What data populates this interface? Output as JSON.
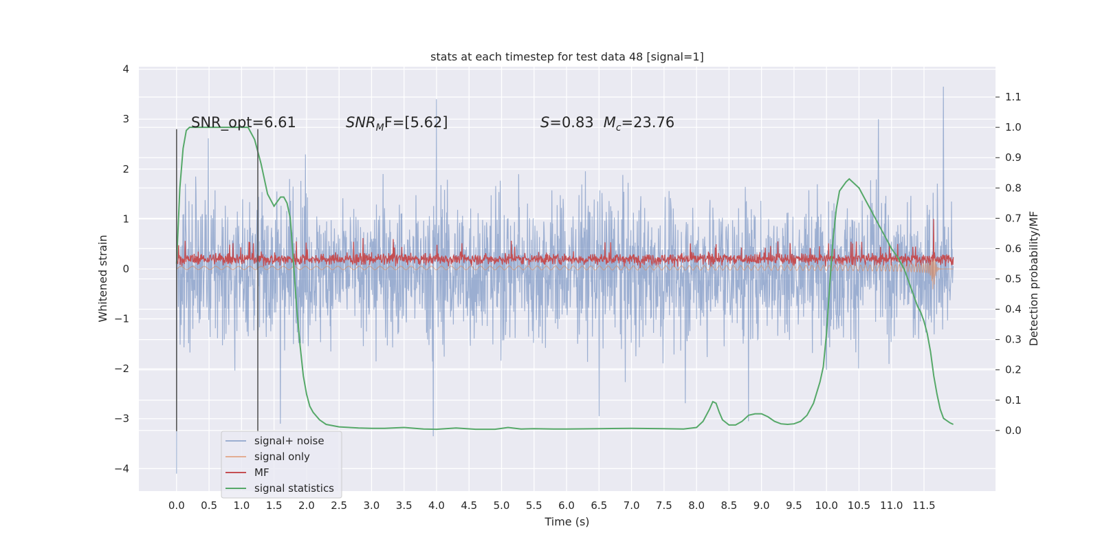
{
  "chart_data": {
    "type": "line",
    "title": "stats at each timestep for test data 48 [signal=1]",
    "xlabel": "Time (s)",
    "ylabel_left": "Whitened strain",
    "ylabel_right": "Detection probability/MF",
    "xlim": [
      -0.58,
      12.6
    ],
    "ylim_left": [
      -4.45,
      4.05
    ],
    "ylim_right": [
      -0.2,
      1.2
    ],
    "x_ticks": [
      0.0,
      0.5,
      1.0,
      1.5,
      2.0,
      2.5,
      3.0,
      3.5,
      4.0,
      4.5,
      5.0,
      5.5,
      6.0,
      6.5,
      7.0,
      7.5,
      8.0,
      8.5,
      9.0,
      9.5,
      10.0,
      10.5,
      11.0,
      11.5
    ],
    "x_tick_labels": [
      "0.0",
      "0.5",
      "1.0",
      "1.5",
      "2.0",
      "2.5",
      "3.0",
      "3.5",
      "4.0",
      "4.5",
      "5.0",
      "5.5",
      "6.0",
      "6.5",
      "7.0",
      "7.5",
      "8.0",
      "8.5",
      "9.0",
      "9.5",
      "10.0",
      "10.5",
      "11.0",
      "11.5"
    ],
    "y_left_ticks": [
      -4,
      -3,
      -2,
      -1,
      0,
      1,
      2,
      3,
      4
    ],
    "y_left_tick_labels": [
      "−4",
      "−3",
      "−2",
      "−1",
      "0",
      "1",
      "2",
      "3",
      "4"
    ],
    "y_right_ticks": [
      0.0,
      0.1,
      0.2,
      0.3,
      0.4,
      0.5,
      0.6,
      0.7,
      0.8,
      0.9,
      1.0,
      1.1
    ],
    "y_right_tick_labels": [
      "0.0",
      "0.1",
      "0.2",
      "0.3",
      "0.4",
      "0.5",
      "0.6",
      "0.7",
      "0.8",
      "0.9",
      "1.0",
      "1.1"
    ],
    "grid": true,
    "legend_position": "lower-left",
    "annotations": {
      "snr_opt": "SNR_opt=6.61",
      "snr_mf_prefix": "SNR",
      "snr_mf_sub": "M",
      "snr_mf_suffix": "F=[5.62]",
      "s_var": "S",
      "s_value": "=0.83",
      "mc_var": "M",
      "mc_sub": "c",
      "mc_value": "=23.76"
    },
    "vertical_markers": [
      0.0,
      1.25
    ],
    "series": [
      {
        "name": "signal+ noise",
        "axis": "left",
        "color": "#4c72b0",
        "style": "noise",
        "x_range": [
          0.0,
          11.95
        ],
        "typical_amplitude": 1.6,
        "peaks": [
          {
            "x": 0.0,
            "y": -4.1
          },
          {
            "x": 4.0,
            "y": 3.4
          },
          {
            "x": 3.95,
            "y": -3.35
          },
          {
            "x": 11.8,
            "y": 3.65
          },
          {
            "x": 1.6,
            "y": -3.1
          },
          {
            "x": 6.5,
            "y": -2.95
          },
          {
            "x": 8.8,
            "y": -3.05
          },
          {
            "x": 10.8,
            "y": 3.0
          }
        ]
      },
      {
        "name": "signal only",
        "axis": "left",
        "color": "#dd8452",
        "style": "chirp",
        "x_range": [
          0.0,
          11.95
        ],
        "merger_time": 11.65,
        "peak_amplitude": 1.25
      },
      {
        "name": "MF",
        "axis": "left",
        "color": "#c44e52",
        "style": "mf",
        "x_range": [
          0.0,
          11.95
        ],
        "baseline": 0.2,
        "typical_amplitude": 0.15,
        "peaks": [
          {
            "x": 11.65,
            "y": 1.0
          }
        ]
      },
      {
        "name": "signal statistics",
        "axis": "right",
        "color": "#55a868",
        "style": "line",
        "x": [
          0.0,
          0.05,
          0.1,
          0.15,
          0.2,
          0.3,
          0.5,
          0.8,
          1.0,
          1.1,
          1.2,
          1.3,
          1.4,
          1.5,
          1.6,
          1.65,
          1.7,
          1.75,
          1.8,
          1.85,
          1.9,
          1.95,
          2.0,
          2.05,
          2.1,
          2.2,
          2.3,
          2.5,
          2.8,
          3.0,
          3.2,
          3.5,
          3.8,
          4.0,
          4.3,
          4.6,
          4.9,
          5.1,
          5.3,
          5.5,
          5.8,
          6.0,
          6.5,
          7.0,
          7.5,
          7.8,
          8.0,
          8.1,
          8.2,
          8.25,
          8.3,
          8.35,
          8.4,
          8.5,
          8.6,
          8.7,
          8.8,
          8.9,
          9.0,
          9.1,
          9.2,
          9.3,
          9.4,
          9.5,
          9.6,
          9.7,
          9.8,
          9.9,
          9.95,
          10.0,
          10.05,
          10.1,
          10.15,
          10.2,
          10.3,
          10.35,
          10.4,
          10.5,
          10.6,
          10.7,
          10.8,
          10.9,
          11.0,
          11.1,
          11.2,
          11.25,
          11.3,
          11.35,
          11.4,
          11.45,
          11.5,
          11.55,
          11.6,
          11.65,
          11.7,
          11.75,
          11.8,
          11.9,
          11.95
        ],
        "y": [
          0.55,
          0.8,
          0.93,
          0.99,
          1.0,
          1.0,
          1.0,
          1.0,
          1.0,
          1.0,
          0.96,
          0.88,
          0.78,
          0.74,
          0.77,
          0.77,
          0.75,
          0.7,
          0.55,
          0.4,
          0.28,
          0.18,
          0.12,
          0.08,
          0.06,
          0.035,
          0.02,
          0.012,
          0.008,
          0.007,
          0.007,
          0.01,
          0.005,
          0.004,
          0.008,
          0.004,
          0.004,
          0.01,
          0.005,
          0.006,
          0.005,
          0.005,
          0.006,
          0.007,
          0.006,
          0.005,
          0.01,
          0.03,
          0.07,
          0.095,
          0.09,
          0.06,
          0.035,
          0.018,
          0.018,
          0.03,
          0.05,
          0.055,
          0.055,
          0.045,
          0.03,
          0.022,
          0.02,
          0.022,
          0.03,
          0.05,
          0.09,
          0.16,
          0.21,
          0.32,
          0.48,
          0.63,
          0.73,
          0.79,
          0.82,
          0.83,
          0.82,
          0.8,
          0.76,
          0.72,
          0.68,
          0.64,
          0.6,
          0.57,
          0.53,
          0.5,
          0.47,
          0.44,
          0.41,
          0.39,
          0.36,
          0.32,
          0.26,
          0.18,
          0.12,
          0.07,
          0.04,
          0.025,
          0.02
        ]
      }
    ]
  }
}
